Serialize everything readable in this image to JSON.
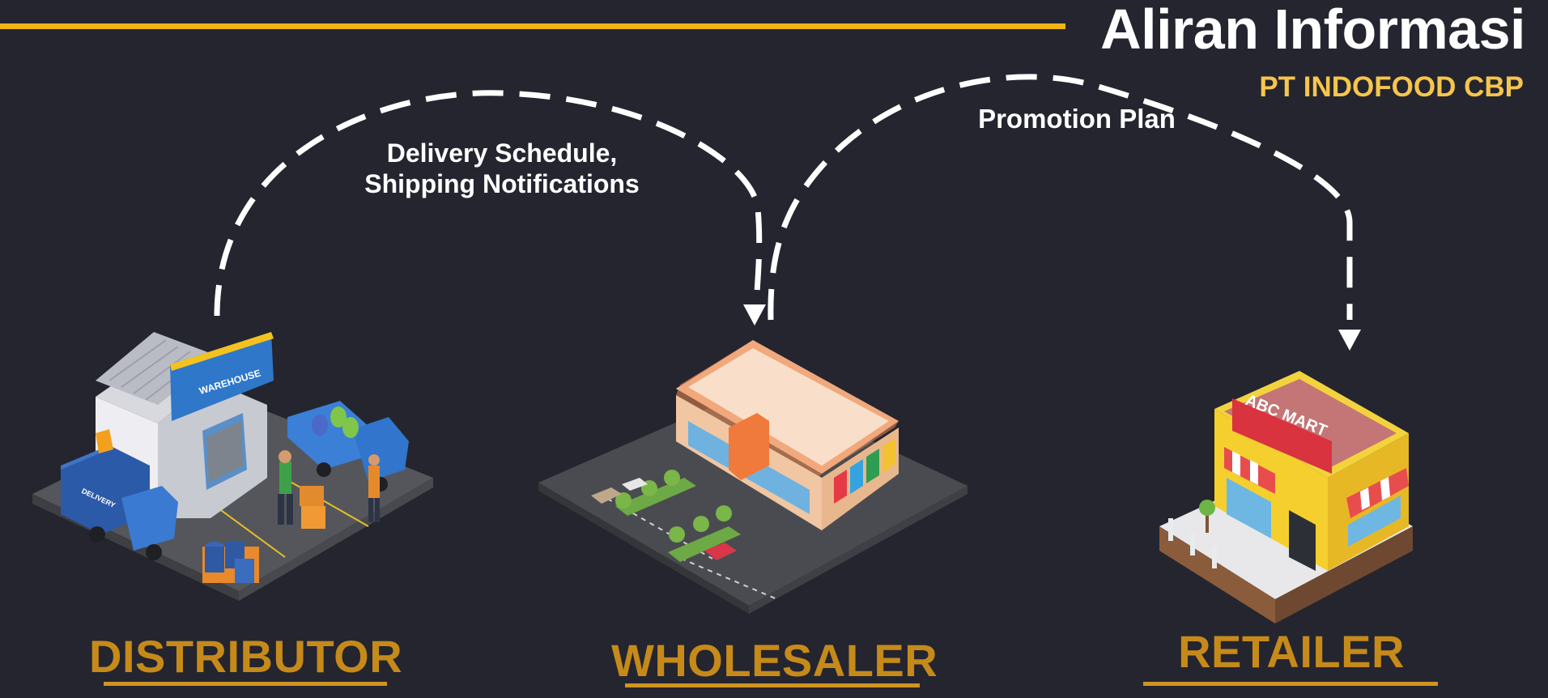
{
  "title": "Aliran Informasi",
  "subtitle": "PT INDOFOOD CBP",
  "flows": [
    {
      "from": "DISTRIBUTOR",
      "to": "WHOLESALER",
      "label_lines": [
        "Delivery Schedule,",
        "Shipping Notifications"
      ]
    },
    {
      "from": "WHOLESALER",
      "to": "RETAILER",
      "label": "Promotion Plan"
    }
  ],
  "nodes": {
    "distributor": {
      "label": "DISTRIBUTOR",
      "sign": "WAREHOUSE",
      "truck_text": "DELIVERY"
    },
    "wholesaler": {
      "label": "WHOLESALER"
    },
    "retailer": {
      "label": "RETAILER",
      "sign": "ABC MART"
    }
  },
  "colors": {
    "background": "#24252f",
    "accent_line": "#f2b313",
    "subtitle": "#f6c54d",
    "node_label": "#c68a1a",
    "arrow": "#ffffff"
  }
}
